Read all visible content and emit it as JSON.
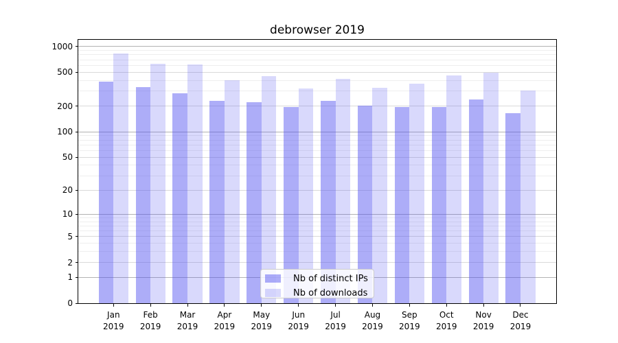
{
  "chart_data": {
    "type": "bar",
    "title": "debrowser 2019",
    "categories": [
      "Jan 2019",
      "Feb 2019",
      "Mar 2019",
      "Apr 2019",
      "May 2019",
      "Jun 2019",
      "Jul 2019",
      "Aug 2019",
      "Sep 2019",
      "Oct 2019",
      "Nov 2019",
      "Dec 2019"
    ],
    "series": [
      {
        "name": "Nb of distinct IPs",
        "color": "rgba(80,80,240,0.47)",
        "values": [
          390,
          335,
          281,
          233,
          222,
          194,
          231,
          202,
          194,
          197,
          241,
          167
        ]
      },
      {
        "name": "Nb of downloads",
        "color": "rgba(80,80,240,0.22)",
        "values": [
          835,
          625,
          615,
          404,
          452,
          324,
          421,
          327,
          366,
          460,
          498,
          308
        ]
      }
    ],
    "xlabel": "",
    "ylabel": "",
    "yscale": "symlog",
    "ylim": [
      0,
      1200
    ],
    "yticks": [
      0,
      1,
      2,
      5,
      10,
      20,
      50,
      100,
      200,
      500,
      1000
    ],
    "yticks_decade": [
      1,
      10,
      100,
      1000
    ],
    "yticks_minor": [
      3,
      4,
      6,
      7,
      8,
      9,
      30,
      40,
      60,
      70,
      80,
      90,
      300,
      400,
      600,
      700,
      800,
      900
    ],
    "grid": true,
    "legend_position": "inside lower center"
  },
  "colors": {
    "spine": "#000000",
    "grid_decade": "#b2b2b2",
    "grid_major": "#d9d9d9",
    "grid_minor": "#eeeeee",
    "text": "#000000",
    "legend_border": "#cccccc",
    "legend_background": "rgba(255,255,255,0.8)"
  }
}
